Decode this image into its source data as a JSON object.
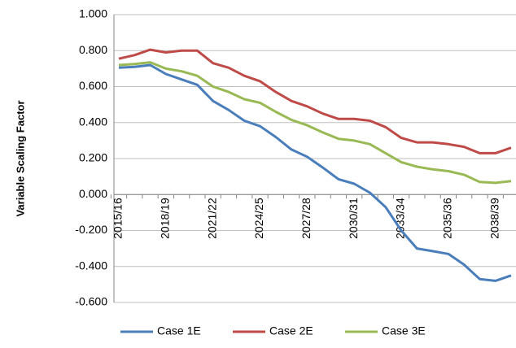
{
  "chart_data": {
    "type": "line",
    "y_label": "Variable Scaling Factor",
    "categories": [
      "2015/16",
      null,
      null,
      "2018/19",
      null,
      null,
      "2021/22",
      null,
      null,
      "2024/25",
      null,
      null,
      "2027/28",
      null,
      null,
      "2030/31",
      null,
      null,
      "2033/34",
      null,
      null,
      "2035/36",
      null,
      null,
      "2038/39",
      null
    ],
    "series": [
      {
        "name": "Case 1E",
        "color": "#4a7ebb",
        "values": [
          0.705,
          0.71,
          0.72,
          0.67,
          0.64,
          0.61,
          0.52,
          0.47,
          0.41,
          0.38,
          0.32,
          0.25,
          0.21,
          0.15,
          0.085,
          0.06,
          0.01,
          -0.07,
          -0.2,
          -0.3,
          -0.315,
          -0.33,
          -0.39,
          -0.47,
          -0.48,
          -0.45
        ]
      },
      {
        "name": "Case 2E",
        "color": "#be4b48",
        "values": [
          0.755,
          0.775,
          0.805,
          0.79,
          0.8,
          0.8,
          0.73,
          0.705,
          0.66,
          0.63,
          0.57,
          0.52,
          0.49,
          0.45,
          0.42,
          0.42,
          0.41,
          0.375,
          0.315,
          0.29,
          0.29,
          0.28,
          0.265,
          0.23,
          0.23,
          0.26
        ]
      },
      {
        "name": "Case 3E",
        "color": "#98b954",
        "values": [
          0.72,
          0.725,
          0.735,
          0.7,
          0.685,
          0.66,
          0.6,
          0.57,
          0.53,
          0.51,
          0.46,
          0.415,
          0.385,
          0.345,
          0.31,
          0.3,
          0.28,
          0.23,
          0.18,
          0.155,
          0.14,
          0.13,
          0.11,
          0.07,
          0.065,
          0.075
        ]
      }
    ],
    "ylim": [
      -0.6,
      1.0
    ],
    "yticks": [
      {
        "value": -0.6,
        "label": "-0.600"
      },
      {
        "value": -0.4,
        "label": "-0.400"
      },
      {
        "value": -0.2,
        "label": "-0.200"
      },
      {
        "value": 0,
        "label": "0.000"
      },
      {
        "value": 0.2,
        "label": "0.200"
      },
      {
        "value": 0.4,
        "label": "0.400"
      },
      {
        "value": 0.6,
        "label": "0.600"
      },
      {
        "value": 0.8,
        "label": "0.800"
      },
      {
        "value": 1.0,
        "label": "1.000"
      }
    ],
    "grid": true,
    "legend": "bottom"
  }
}
